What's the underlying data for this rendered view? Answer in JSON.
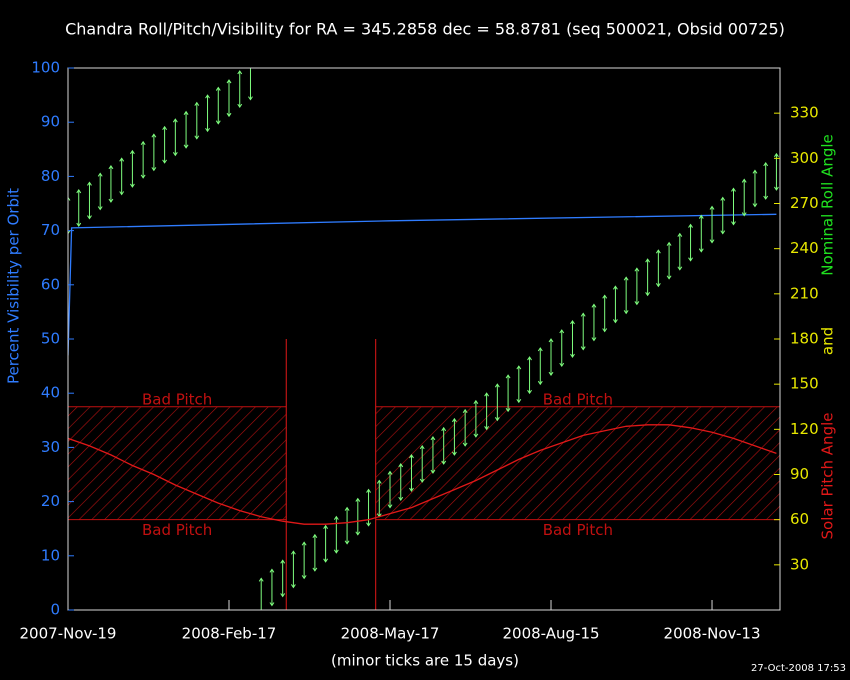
{
  "chart_data": {
    "type": "line",
    "title": "Chandra Roll/Pitch/Visibility for RA = 345.2858 dec = 58.8781 (seq 500021, Obsid 00725)",
    "x_label": "(minor ticks are 15 days)",
    "footer": "27-Oct-2008 17:53",
    "y_label": "Percent Visibility per Orbit",
    "y2_label": [
      "Solar Pitch Angle",
      "and",
      "Nominal Roll Angle"
    ],
    "y2_label_colors": [
      "#e01818",
      "#e8e800",
      "#20e020"
    ],
    "xlim": [
      "2007-11-19",
      "2008-12-21"
    ],
    "xticks": [
      {
        "value": "2007-11-19",
        "label": "2007-Nov-19"
      },
      {
        "value": "2008-02-17",
        "label": "2008-Feb-17"
      },
      {
        "value": "2008-05-17",
        "label": "2008-May-17"
      },
      {
        "value": "2008-08-15",
        "label": "2008-Aug-15"
      },
      {
        "value": "2008-11-13",
        "label": "2008-Nov-13"
      }
    ],
    "ylim": [
      0,
      100
    ],
    "yticks": [
      0,
      10,
      20,
      30,
      40,
      50,
      60,
      70,
      80,
      90,
      100
    ],
    "y2lim": [
      0,
      360
    ],
    "y2ticks": [
      30,
      60,
      90,
      120,
      150,
      180,
      210,
      240,
      270,
      300,
      330
    ],
    "bad_pitch": {
      "label": "Bad Pitch",
      "color": "#c01010",
      "ylim": [
        60,
        135
      ],
      "spans": [
        [
          "2007-11-19",
          "2008-03-20"
        ],
        [
          "2008-05-09",
          "2008-12-21"
        ]
      ],
      "marker_lines": {
        "x": [
          "2008-03-20",
          "2008-05-09"
        ],
        "y2lim": [
          0,
          180
        ]
      }
    },
    "series": [
      {
        "kind": "line",
        "color": "#2f7cff",
        "x": [
          "2007-11-19",
          "2007-11-21",
          "2008-05-17",
          "2008-12-19"
        ],
        "values": [
          47,
          70.5,
          71.8,
          73
        ]
      },
      {
        "kind": "errorbar",
        "axis": "y2",
        "color": "#7fff7f",
        "error": 12,
        "x": [
          "2007-11-19",
          "2007-11-25",
          "2007-12-01",
          "2007-12-07",
          "2007-12-13",
          "2007-12-19",
          "2007-12-25",
          "2007-12-31",
          "2008-01-06",
          "2008-01-12",
          "2008-01-18",
          "2008-01-24",
          "2008-01-30",
          "2008-02-05",
          "2008-02-11",
          "2008-02-17",
          "2008-02-23",
          "2008-02-29",
          "2008-03-06",
          "2008-03-12",
          "2008-03-18",
          "2008-03-24",
          "2008-03-30",
          "2008-04-05",
          "2008-04-11",
          "2008-04-17",
          "2008-04-23",
          "2008-04-29",
          "2008-05-05",
          "2008-05-11",
          "2008-05-17",
          "2008-05-23",
          "2008-05-29",
          "2008-06-04",
          "2008-06-10",
          "2008-06-16",
          "2008-06-22",
          "2008-06-28",
          "2008-07-04",
          "2008-07-10",
          "2008-07-16",
          "2008-07-22",
          "2008-07-28",
          "2008-08-03",
          "2008-08-09",
          "2008-08-15",
          "2008-08-21",
          "2008-08-27",
          "2008-09-02",
          "2008-09-08",
          "2008-09-14",
          "2008-09-20",
          "2008-09-26",
          "2008-10-02",
          "2008-10-08",
          "2008-10-14",
          "2008-10-20",
          "2008-10-26",
          "2008-11-01",
          "2008-11-07",
          "2008-11-13",
          "2008-11-19",
          "2008-11-25",
          "2008-12-01",
          "2008-12-07",
          "2008-12-13",
          "2008-12-19"
        ],
        "values": [
          262,
          267,
          272,
          278,
          283,
          288,
          293,
          299,
          304,
          309,
          314,
          319,
          325,
          330,
          335,
          340,
          346,
          351,
          9,
          15,
          21,
          27,
          33,
          38,
          44,
          50,
          56,
          62,
          68,
          74,
          80,
          85,
          91,
          97,
          103,
          109,
          115,
          121,
          127,
          132,
          138,
          144,
          150,
          156,
          162,
          168,
          174,
          180,
          185,
          191,
          197,
          203,
          209,
          215,
          221,
          227,
          232,
          238,
          244,
          250,
          256,
          262,
          268,
          274,
          280,
          285,
          291
        ]
      },
      {
        "kind": "line",
        "axis": "y2",
        "color": "#e01818",
        "x": [
          "2007-11-19",
          "2007-12-01",
          "2007-12-13",
          "2007-12-25",
          "2008-01-06",
          "2008-01-18",
          "2008-01-30",
          "2008-02-11",
          "2008-02-23",
          "2008-03-06",
          "2008-03-18",
          "2008-03-30",
          "2008-04-11",
          "2008-04-23",
          "2008-05-05",
          "2008-05-17",
          "2008-05-29",
          "2008-06-10",
          "2008-06-22",
          "2008-07-04",
          "2008-07-16",
          "2008-07-28",
          "2008-08-09",
          "2008-08-21",
          "2008-09-02",
          "2008-09-14",
          "2008-09-26",
          "2008-10-08",
          "2008-10-20",
          "2008-11-01",
          "2008-11-13",
          "2008-11-25",
          "2008-12-07",
          "2008-12-19"
        ],
        "values": [
          114,
          109,
          103,
          96,
          90,
          83,
          77,
          71,
          66,
          62,
          59,
          57,
          57,
          58,
          60,
          64,
          68,
          74,
          80,
          86,
          93,
          100,
          106,
          111,
          116,
          119,
          122,
          123,
          123,
          121,
          118,
          114,
          109,
          104
        ]
      }
    ]
  }
}
